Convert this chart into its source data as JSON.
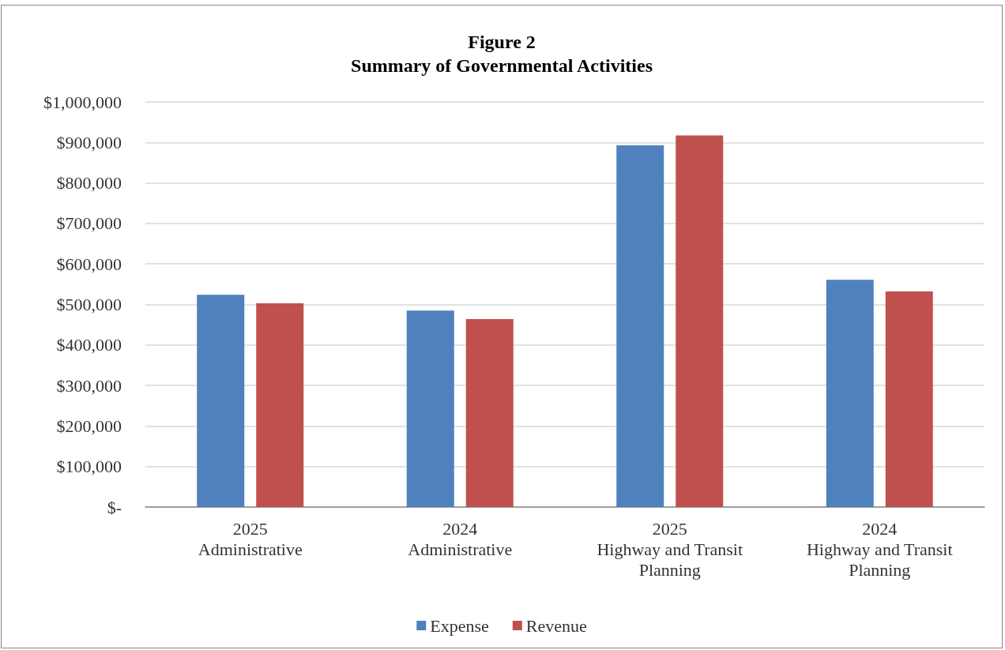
{
  "chart_data": {
    "type": "bar",
    "title": "Figure 2\nSummary of Governmental Activities",
    "categories": [
      "2025\nAdministrative",
      "2024\nAdministrative",
      "2025\nHighway and Transit\nPlanning",
      "2024\nHighway and Transit\nPlanning"
    ],
    "series": [
      {
        "name": "Expense",
        "color": "#4f81bd",
        "values": [
          524000,
          485000,
          893000,
          561000
        ]
      },
      {
        "name": "Revenue",
        "color": "#c0504d",
        "values": [
          503000,
          464000,
          917000,
          532000
        ]
      }
    ],
    "ylim": [
      0,
      1000000
    ],
    "yticks": [
      {
        "value": 0,
        "label": "$-"
      },
      {
        "value": 100000,
        "label": "$100,000"
      },
      {
        "value": 200000,
        "label": "$200,000"
      },
      {
        "value": 300000,
        "label": "$300,000"
      },
      {
        "value": 400000,
        "label": "$400,000"
      },
      {
        "value": 500000,
        "label": "$500,000"
      },
      {
        "value": 600000,
        "label": "$600,000"
      },
      {
        "value": 700000,
        "label": "$700,000"
      },
      {
        "value": 800000,
        "label": "$800,000"
      },
      {
        "value": 900000,
        "label": "$900,000"
      },
      {
        "value": 1000000,
        "label": "$1,000,000"
      }
    ],
    "grid": "y",
    "legend": "bottom"
  }
}
